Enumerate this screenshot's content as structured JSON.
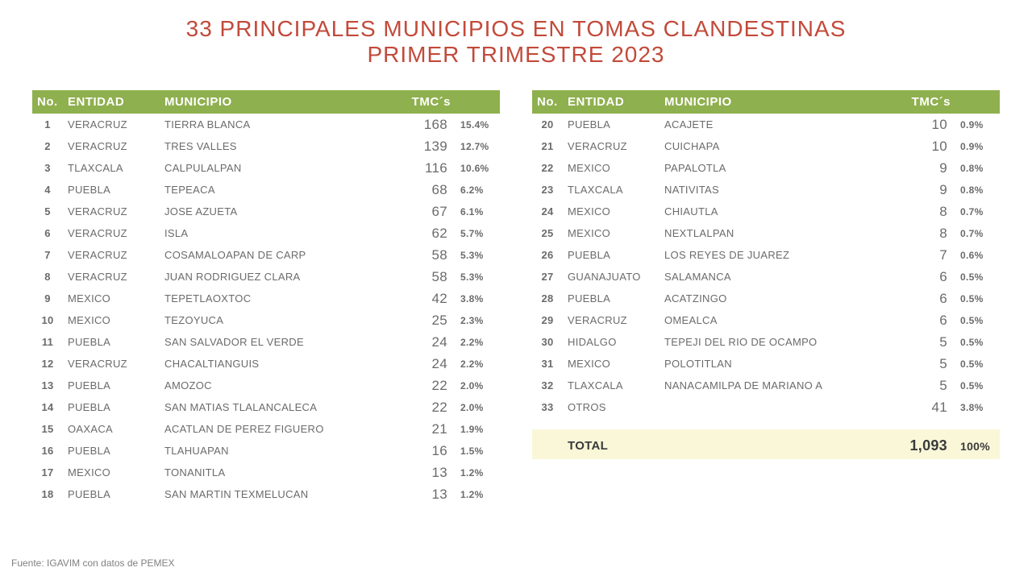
{
  "title": {
    "line1": "33 PRINCIPALES MUNICIPIOS EN TOMAS CLANDESTINAS",
    "line2": "PRIMER TRIMESTRE 2023",
    "color": "#c24a3a"
  },
  "header": {
    "no": "No.",
    "entidad": "ENTIDAD",
    "municipio": "MUNICIPIO",
    "tmcs": "TMC´s",
    "bg": "#8fb04e"
  },
  "text_color": "#6b6b6b",
  "total_bg": "#f9f7d8",
  "left": [
    {
      "n": "1",
      "ent": "VERACRUZ",
      "mun": "TIERRA BLANCA",
      "tmc": "168",
      "pct": "15.4%"
    },
    {
      "n": "2",
      "ent": "VERACRUZ",
      "mun": "TRES VALLES",
      "tmc": "139",
      "pct": "12.7%"
    },
    {
      "n": "3",
      "ent": "TLAXCALA",
      "mun": "CALPULALPAN",
      "tmc": "116",
      "pct": "10.6%"
    },
    {
      "n": "4",
      "ent": "PUEBLA",
      "mun": "TEPEACA",
      "tmc": "68",
      "pct": "6.2%"
    },
    {
      "n": "5",
      "ent": "VERACRUZ",
      "mun": "JOSE AZUETA",
      "tmc": "67",
      "pct": "6.1%"
    },
    {
      "n": "6",
      "ent": "VERACRUZ",
      "mun": "ISLA",
      "tmc": "62",
      "pct": "5.7%"
    },
    {
      "n": "7",
      "ent": "VERACRUZ",
      "mun": "COSAMALOAPAN DE CARP",
      "tmc": "58",
      "pct": "5.3%"
    },
    {
      "n": "8",
      "ent": "VERACRUZ",
      "mun": "JUAN RODRIGUEZ CLARA",
      "tmc": "58",
      "pct": "5.3%"
    },
    {
      "n": "9",
      "ent": "MEXICO",
      "mun": "TEPETLAOXTOC",
      "tmc": "42",
      "pct": "3.8%"
    },
    {
      "n": "10",
      "ent": "MEXICO",
      "mun": "TEZOYUCA",
      "tmc": "25",
      "pct": "2.3%"
    },
    {
      "n": "11",
      "ent": "PUEBLA",
      "mun": "SAN SALVADOR EL VERDE",
      "tmc": "24",
      "pct": "2.2%"
    },
    {
      "n": "12",
      "ent": "VERACRUZ",
      "mun": "CHACALTIANGUIS",
      "tmc": "24",
      "pct": "2.2%"
    },
    {
      "n": "13",
      "ent": "PUEBLA",
      "mun": "AMOZOC",
      "tmc": "22",
      "pct": "2.0%"
    },
    {
      "n": "14",
      "ent": "PUEBLA",
      "mun": "SAN MATIAS TLALANCALECA",
      "tmc": "22",
      "pct": "2.0%"
    },
    {
      "n": "15",
      "ent": "OAXACA",
      "mun": "ACATLAN DE PEREZ FIGUERO",
      "tmc": "21",
      "pct": "1.9%"
    },
    {
      "n": "16",
      "ent": "PUEBLA",
      "mun": "TLAHUAPAN",
      "tmc": "16",
      "pct": "1.5%"
    },
    {
      "n": "17",
      "ent": "MEXICO",
      "mun": "TONANITLA",
      "tmc": "13",
      "pct": "1.2%"
    },
    {
      "n": "18",
      "ent": "PUEBLA",
      "mun": "SAN MARTIN TEXMELUCAN",
      "tmc": "13",
      "pct": "1.2%"
    }
  ],
  "right": [
    {
      "n": "20",
      "ent": "PUEBLA",
      "mun": "ACAJETE",
      "tmc": "10",
      "pct": "0.9%"
    },
    {
      "n": "21",
      "ent": "VERACRUZ",
      "mun": "CUICHAPA",
      "tmc": "10",
      "pct": "0.9%"
    },
    {
      "n": "22",
      "ent": "MEXICO",
      "mun": "PAPALOTLA",
      "tmc": "9",
      "pct": "0.8%"
    },
    {
      "n": "23",
      "ent": "TLAXCALA",
      "mun": "NATIVITAS",
      "tmc": "9",
      "pct": "0.8%"
    },
    {
      "n": "24",
      "ent": "MEXICO",
      "mun": "CHIAUTLA",
      "tmc": "8",
      "pct": "0.7%"
    },
    {
      "n": "25",
      "ent": "MEXICO",
      "mun": "NEXTLALPAN",
      "tmc": "8",
      "pct": "0.7%"
    },
    {
      "n": "26",
      "ent": "PUEBLA",
      "mun": "LOS REYES DE JUAREZ",
      "tmc": "7",
      "pct": "0.6%"
    },
    {
      "n": "27",
      "ent": "GUANAJUATO",
      "mun": "SALAMANCA",
      "tmc": "6",
      "pct": "0.5%"
    },
    {
      "n": "28",
      "ent": "PUEBLA",
      "mun": "ACATZINGO",
      "tmc": "6",
      "pct": "0.5%"
    },
    {
      "n": "29",
      "ent": "VERACRUZ",
      "mun": "OMEALCA",
      "tmc": "6",
      "pct": "0.5%"
    },
    {
      "n": "30",
      "ent": "HIDALGO",
      "mun": "TEPEJI DEL RIO DE OCAMPO",
      "tmc": "5",
      "pct": "0.5%"
    },
    {
      "n": "31",
      "ent": "MEXICO",
      "mun": "POLOTITLAN",
      "tmc": "5",
      "pct": "0.5%"
    },
    {
      "n": "32",
      "ent": "TLAXCALA",
      "mun": "NANACAMILPA DE MARIANO A",
      "tmc": "5",
      "pct": "0.5%"
    },
    {
      "n": "33",
      "ent": "OTROS",
      "mun": "",
      "tmc": "41",
      "pct": "3.8%"
    }
  ],
  "total": {
    "label": "TOTAL",
    "value": "1,093",
    "pct": "100%"
  },
  "footer": "Fuente: IGAVIM con datos de PEMEX"
}
